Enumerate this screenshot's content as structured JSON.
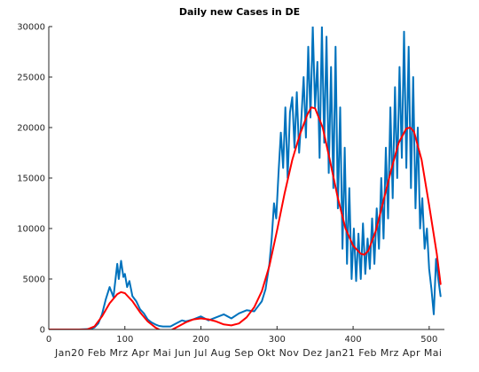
{
  "chart_data": {
    "type": "line",
    "title": "Daily new Cases in DE",
    "xlabel": "",
    "ylabel": "",
    "xlim": [
      0,
      520
    ],
    "ylim": [
      0,
      30000
    ],
    "x_ticks": [
      0,
      100,
      200,
      300,
      400,
      500
    ],
    "y_ticks": [
      0,
      5000,
      10000,
      15000,
      20000,
      25000,
      30000
    ],
    "month_labels": [
      "Jan20",
      "Feb",
      "Mrz",
      "Apr",
      "Mai",
      "Jun",
      "Jul",
      "Aug",
      "Sep",
      "Okt",
      "Nov",
      "Dez",
      "Jan21",
      "Feb",
      "Mrz",
      "Apr",
      "Mai"
    ],
    "grid": false,
    "colors": {
      "daily": "#0072bd",
      "trend": "#ff0000",
      "axis": "#262626"
    },
    "series": [
      {
        "key": "daily",
        "x": [
          0,
          40,
          55,
          60,
          65,
          70,
          75,
          80,
          85,
          90,
          92,
          95,
          98,
          100,
          103,
          106,
          110,
          115,
          120,
          125,
          130,
          135,
          140,
          145,
          150,
          160,
          165,
          170,
          175,
          180,
          190,
          200,
          210,
          220,
          230,
          240,
          250,
          260,
          270,
          275,
          280,
          285,
          290,
          293,
          296,
          299,
          302,
          305,
          308,
          311,
          314,
          317,
          320,
          323,
          326,
          329,
          332,
          335,
          338,
          341,
          344,
          347,
          350,
          353,
          356,
          359,
          362,
          365,
          368,
          371,
          374,
          377,
          380,
          383,
          386,
          389,
          392,
          395,
          398,
          401,
          404,
          407,
          410,
          413,
          416,
          419,
          422,
          425,
          428,
          431,
          434,
          437,
          440,
          443,
          446,
          449,
          452,
          455,
          458,
          461,
          464,
          467,
          470,
          473,
          476,
          479,
          482,
          485,
          488,
          491,
          494,
          497,
          500,
          503,
          506,
          509,
          512,
          515
        ],
        "y": [
          0,
          0,
          50,
          200,
          600,
          1500,
          3000,
          4200,
          3200,
          6500,
          5000,
          6800,
          5200,
          5500,
          4200,
          4800,
          3300,
          2800,
          2000,
          1600,
          1000,
          700,
          500,
          350,
          300,
          300,
          500,
          700,
          900,
          800,
          1000,
          1300,
          900,
          1200,
          1500,
          1100,
          1600,
          1900,
          1800,
          2300,
          2800,
          4000,
          6500,
          9000,
          12500,
          11000,
          15500,
          19500,
          16000,
          22000,
          15000,
          21500,
          23000,
          18000,
          23500,
          17500,
          21000,
          25000,
          19000,
          28000,
          21000,
          30000,
          22000,
          26500,
          17000,
          30000,
          18500,
          29000,
          15500,
          26000,
          14000,
          28000,
          12000,
          22000,
          8000,
          18000,
          6500,
          14000,
          5000,
          10000,
          4800,
          9500,
          5000,
          10500,
          5500,
          9000,
          6000,
          11000,
          6500,
          12000,
          8000,
          15000,
          9000,
          18000,
          11000,
          22000,
          13000,
          24000,
          15000,
          26000,
          17000,
          29500,
          16000,
          28000,
          14000,
          25000,
          12000,
          20000,
          10000,
          13000,
          8000,
          10000,
          6000,
          4000,
          1500,
          7000,
          5000,
          3300
        ],
        "line_width": 2
      },
      {
        "key": "trend",
        "x": [
          0,
          40,
          50,
          60,
          70,
          80,
          90,
          95,
          100,
          110,
          120,
          130,
          140,
          150,
          160,
          170,
          180,
          190,
          200,
          210,
          220,
          230,
          240,
          250,
          260,
          270,
          280,
          290,
          300,
          310,
          320,
          330,
          340,
          345,
          350,
          360,
          370,
          380,
          390,
          400,
          410,
          415,
          420,
          430,
          440,
          450,
          460,
          470,
          475,
          480,
          490,
          500,
          510,
          515
        ],
        "y": [
          0,
          0,
          0,
          300,
          1300,
          2600,
          3500,
          3700,
          3600,
          2800,
          1700,
          800,
          200,
          -200,
          -100,
          300,
          700,
          1000,
          1100,
          1000,
          800,
          500,
          400,
          600,
          1200,
          2200,
          3800,
          6300,
          9800,
          13500,
          16800,
          19300,
          21300,
          22000,
          21900,
          20000,
          16600,
          13000,
          10000,
          8300,
          7500,
          7400,
          7800,
          9800,
          12800,
          15800,
          18500,
          19900,
          20000,
          19600,
          16800,
          12300,
          7500,
          4500
        ],
        "line_width": 2
      }
    ]
  }
}
